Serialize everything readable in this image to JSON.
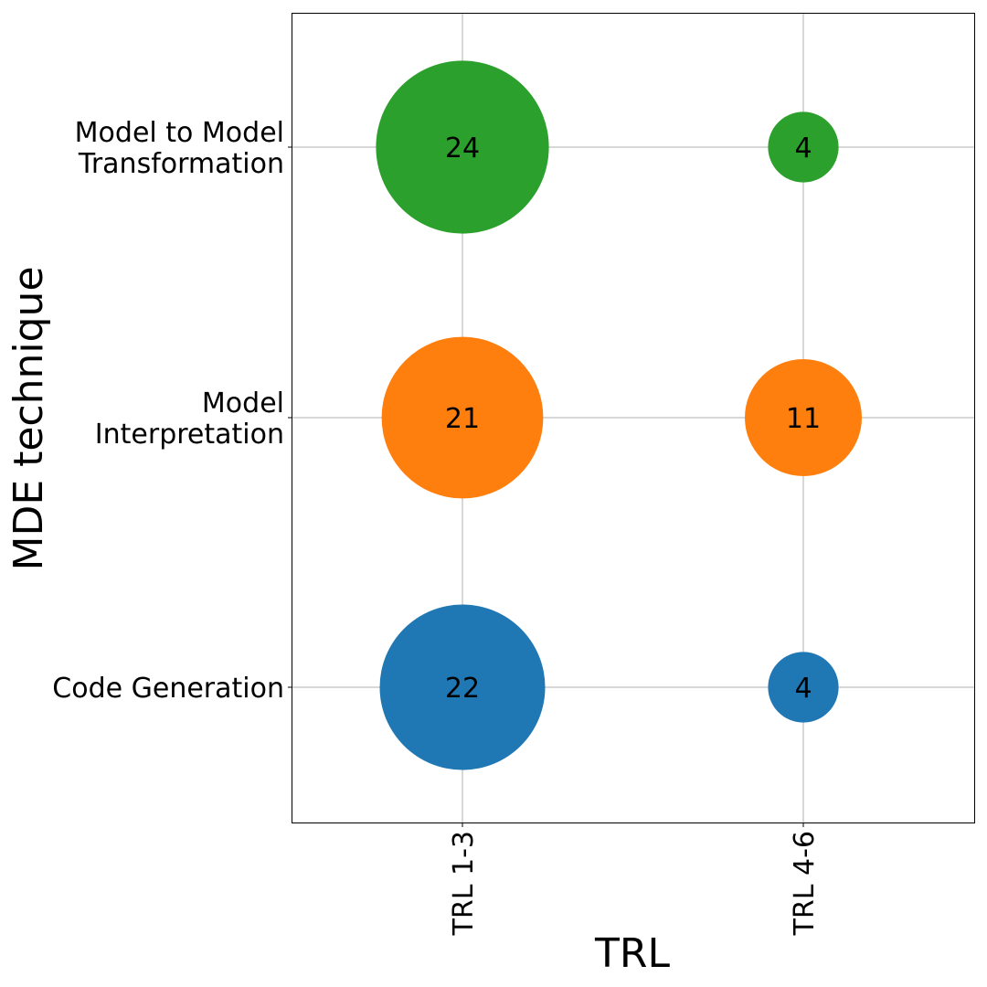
{
  "chart_data": {
    "type": "scatter",
    "variant": "bubble",
    "title": "",
    "xlabel": "TRL",
    "ylabel": "MDE technique",
    "x_categories": [
      "TRL 1-3",
      "TRL 4-6"
    ],
    "y_categories": [
      {
        "lines": [
          "Code Generation"
        ]
      },
      {
        "lines": [
          "Model",
          "Interpretation"
        ]
      },
      {
        "lines": [
          "Model to Model",
          "Transformation"
        ]
      }
    ],
    "grid": true,
    "legend": "none",
    "series": [
      {
        "category": 0,
        "color": "#1f77b4",
        "values": [
          22,
          4
        ]
      },
      {
        "category": 1,
        "color": "#ff7f0e",
        "values": [
          21,
          11
        ]
      },
      {
        "category": 2,
        "color": "#2ca02c",
        "values": [
          24,
          4
        ]
      }
    ]
  }
}
